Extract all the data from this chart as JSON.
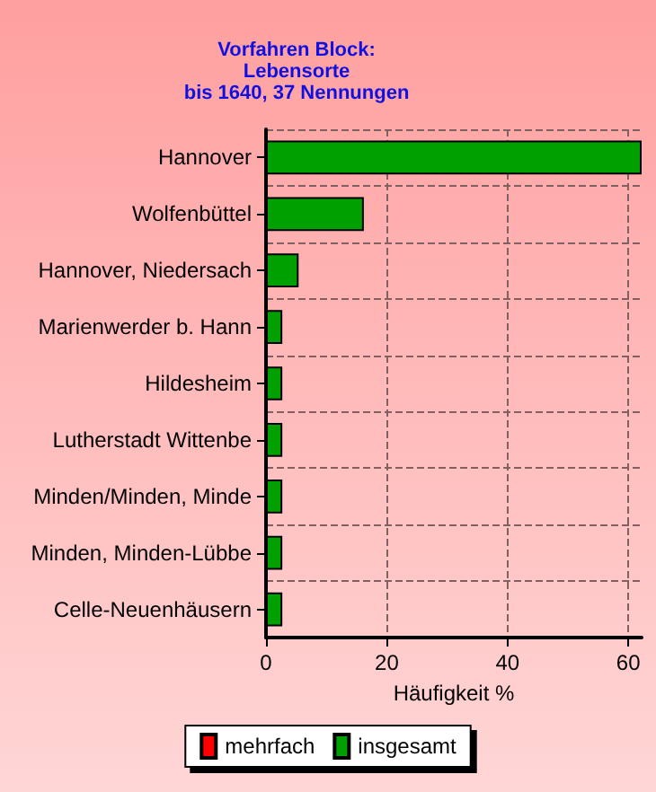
{
  "chart_data": {
    "type": "bar",
    "orientation": "horizontal",
    "title": "Vorfahren Block:\nLebensorte\nbis 1640, 37 Nennungen",
    "xlabel": "Häufigkeit %",
    "categories": [
      "Hannover",
      "Wolfenbüttel",
      "Hannover, Niedersach",
      "Marienwerder b. Hann",
      "Hildesheim",
      "Lutherstadt Wittenbe",
      "Minden/Minden, Minde",
      "Minden, Minden-Lübbe",
      "Celle-Neuenhäusern"
    ],
    "series": [
      {
        "name": "mehrfach",
        "color": "#ff0000",
        "values": [
          null,
          null,
          null,
          null,
          null,
          null,
          null,
          null,
          null
        ]
      },
      {
        "name": "insgesamt",
        "color": "#00a000",
        "values": [
          62.2,
          16.2,
          5.4,
          2.7,
          2.7,
          2.7,
          2.7,
          2.7,
          2.7
        ]
      }
    ],
    "xlim": [
      0,
      62.2
    ],
    "xticks": [
      0,
      20,
      40,
      60
    ],
    "grid": true,
    "legend": "bottom"
  }
}
